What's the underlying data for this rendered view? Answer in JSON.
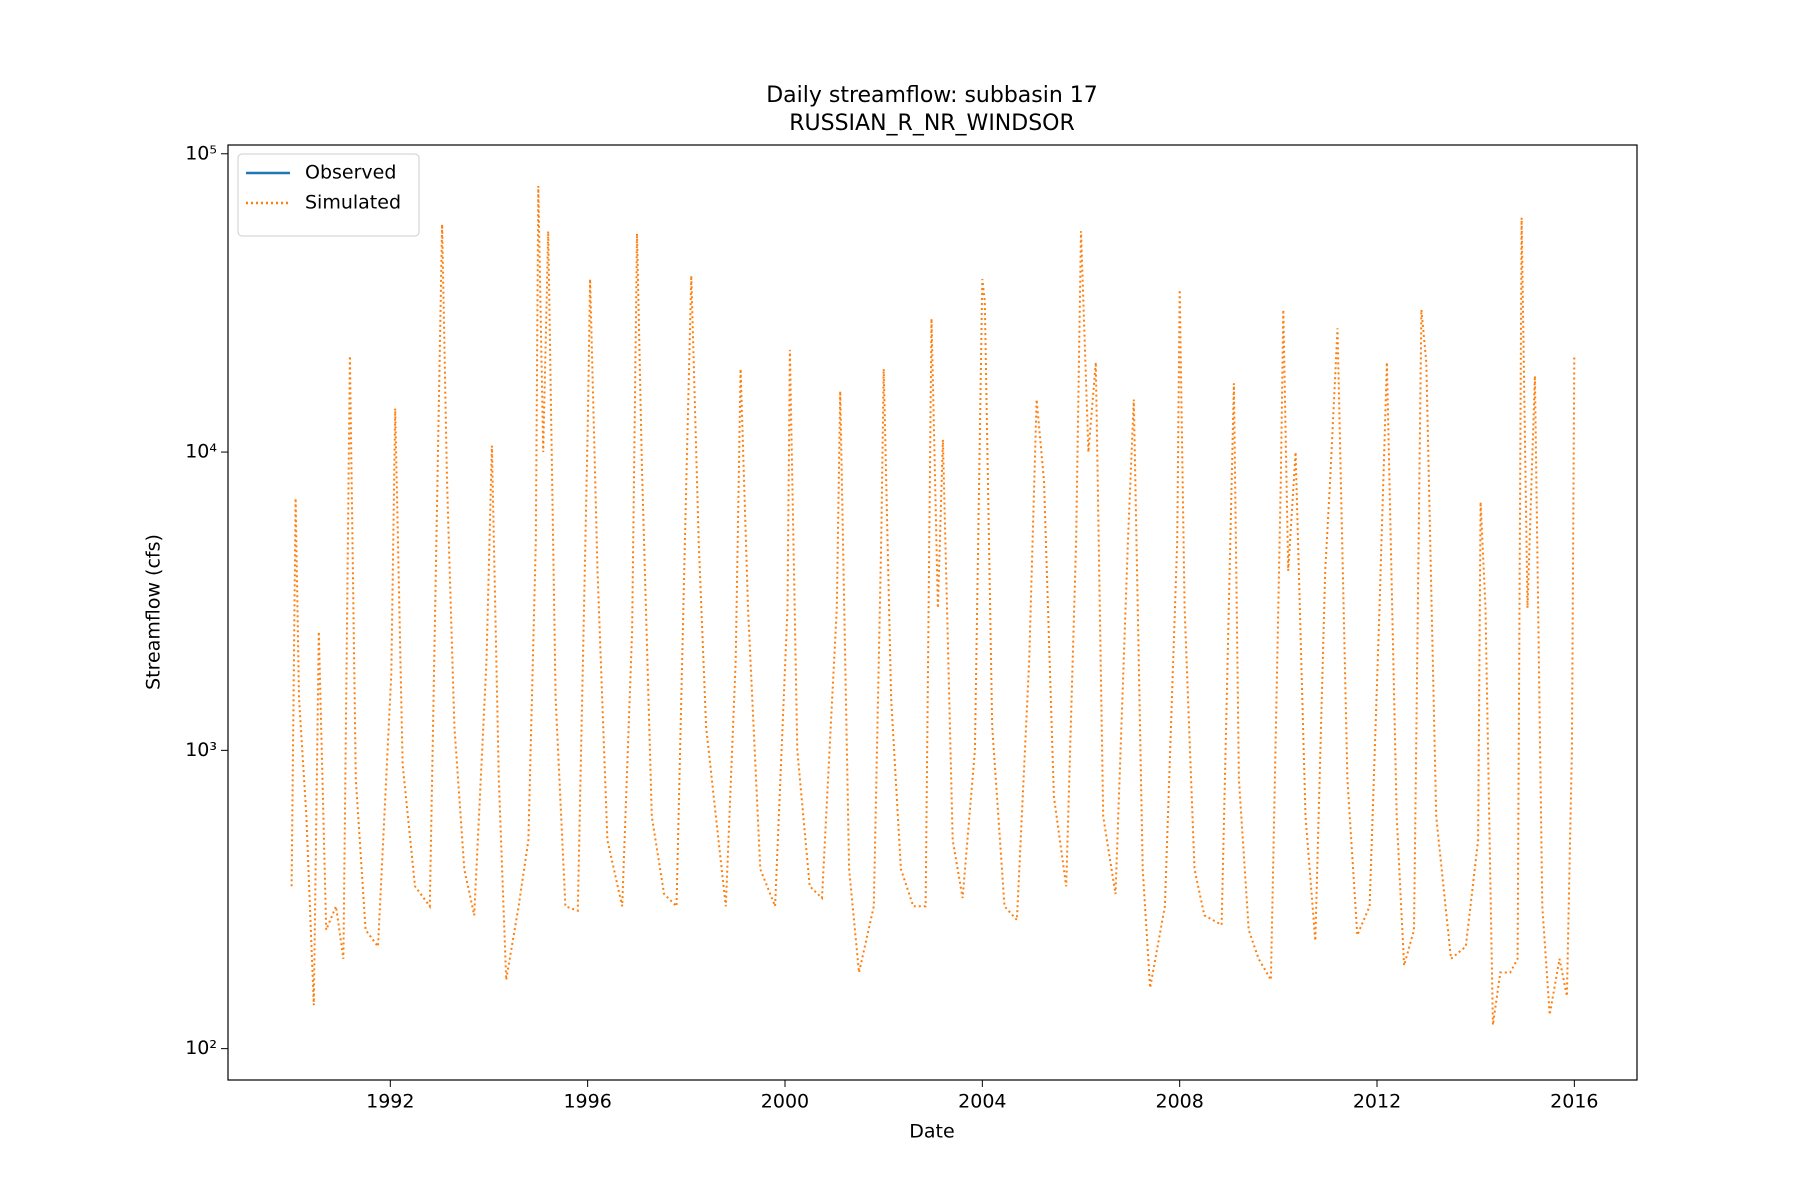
{
  "chart_data": {
    "type": "line",
    "title": "Daily streamflow: subbasin 17",
    "subtitle": "RUSSIAN_R_NR_WINDSOR",
    "xlabel": "Date",
    "ylabel": "Streamflow (cfs)",
    "xlim": [
      1988.71,
      2017.27
    ],
    "xticks": [
      1992,
      1996,
      2000,
      2004,
      2008,
      2012,
      2016
    ],
    "ylim": [
      78.5,
      107000
    ],
    "yscale": "log",
    "yticks": [
      {
        "value": 100,
        "label": "10²"
      },
      {
        "value": 1000,
        "label": "10³"
      },
      {
        "value": 10000,
        "label": "10⁴"
      },
      {
        "value": 100000,
        "label": "10⁵"
      }
    ],
    "legend": "upper left",
    "series": [
      {
        "name": "Observed",
        "color": "#1f77b4",
        "linestyle": "solid",
        "x": [],
        "values": []
      },
      {
        "name": "Simulated",
        "color": "#ff7f0e",
        "linestyle": "dotted",
        "x": [
          1990.0,
          1990.08,
          1990.15,
          1990.3,
          1990.45,
          1990.55,
          1990.7,
          1990.9,
          1991.05,
          1991.18,
          1991.3,
          1991.5,
          1991.75,
          1992.02,
          1992.1,
          1992.25,
          1992.5,
          1992.8,
          1993.0,
          1993.05,
          1993.15,
          1993.3,
          1993.5,
          1993.7,
          1993.95,
          1994.06,
          1994.2,
          1994.35,
          1994.6,
          1994.8,
          1994.95,
          1995.0,
          1995.1,
          1995.2,
          1995.35,
          1995.55,
          1995.8,
          1996.0,
          1996.05,
          1996.2,
          1996.4,
          1996.7,
          1996.9,
          1997.0,
          1997.1,
          1997.3,
          1997.55,
          1997.8,
          1998.0,
          1998.1,
          1998.25,
          1998.4,
          1998.6,
          1998.8,
          1999.0,
          1999.1,
          1999.25,
          1999.5,
          1999.8,
          2000.05,
          2000.1,
          2000.25,
          2000.5,
          2000.75,
          2001.05,
          2001.12,
          2001.3,
          2001.5,
          2001.8,
          2001.95,
          2002.0,
          2002.15,
          2002.35,
          2002.6,
          2002.85,
          2002.97,
          2003.1,
          2003.2,
          2003.4,
          2003.6,
          2003.85,
          2004.0,
          2004.05,
          2004.2,
          2004.45,
          2004.7,
          2004.95,
          2005.1,
          2005.25,
          2005.45,
          2005.7,
          2005.9,
          2006.0,
          2006.15,
          2006.3,
          2006.45,
          2006.7,
          2006.95,
          2007.07,
          2007.25,
          2007.4,
          2007.7,
          2007.95,
          2008.0,
          2008.1,
          2008.3,
          2008.5,
          2008.85,
          2009.1,
          2009.2,
          2009.4,
          2009.6,
          2009.85,
          2010.05,
          2010.1,
          2010.2,
          2010.35,
          2010.55,
          2010.75,
          2010.95,
          2011.05,
          2011.2,
          2011.4,
          2011.6,
          2011.85,
          2012.05,
          2012.2,
          2012.4,
          2012.55,
          2012.75,
          2012.9,
          2013.0,
          2013.2,
          2013.5,
          2013.8,
          2014.05,
          2014.1,
          2014.2,
          2014.35,
          2014.5,
          2014.7,
          2014.85,
          2014.93,
          2015.05,
          2015.2,
          2015.35,
          2015.5,
          2015.7,
          2015.85,
          2015.95,
          2016.0
        ],
        "values": [
          350,
          7000,
          1500,
          600,
          140,
          2500,
          250,
          300,
          200,
          21000,
          800,
          250,
          220,
          1800,
          14000,
          900,
          350,
          300,
          20000,
          58000,
          8000,
          1200,
          400,
          280,
          2000,
          10500,
          800,
          170,
          300,
          500,
          5000,
          78000,
          10000,
          55000,
          1500,
          300,
          290,
          12000,
          38000,
          4000,
          500,
          300,
          2500,
          54000,
          9000,
          600,
          330,
          300,
          8000,
          39000,
          5000,
          1200,
          600,
          300,
          2000,
          19000,
          3000,
          400,
          300,
          3000,
          22000,
          1000,
          350,
          320,
          3000,
          16000,
          400,
          180,
          300,
          5000,
          19000,
          1500,
          400,
          300,
          300,
          28000,
          3000,
          11000,
          500,
          320,
          1000,
          38000,
          32000,
          1200,
          300,
          270,
          2000,
          15000,
          8000,
          700,
          350,
          5000,
          55000,
          10000,
          20000,
          600,
          330,
          5000,
          15000,
          400,
          160,
          300,
          5000,
          35000,
          3000,
          400,
          280,
          260,
          17000,
          800,
          250,
          200,
          170,
          8000,
          30000,
          4000,
          10000,
          600,
          230,
          4000,
          8000,
          26000,
          800,
          240,
          300,
          3000,
          20000,
          600,
          190,
          250,
          30000,
          20000,
          600,
          200,
          220,
          500,
          6800,
          3000,
          120,
          180,
          180,
          200,
          61000,
          3000,
          18000,
          300,
          130,
          200,
          150,
          1000,
          21000
        ]
      }
    ]
  }
}
